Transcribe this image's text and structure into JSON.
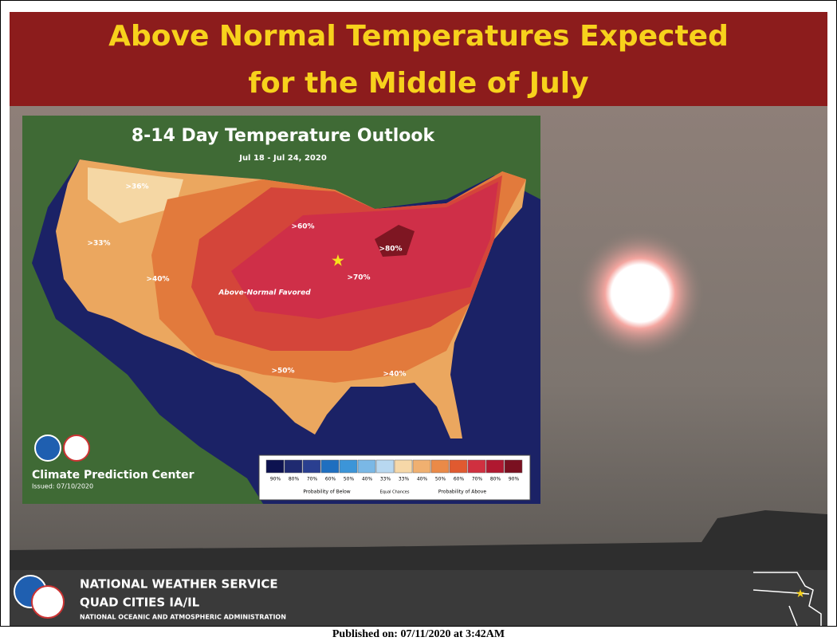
{
  "header": {
    "title_lines": [
      "Above Normal Temperatures Expected",
      "for the Middle of July"
    ]
  },
  "map": {
    "title": "8-14 Day Temperature Outlook",
    "dates": "Jul 18 - Jul 24, 2020",
    "labels": [
      ">36%",
      ">33%",
      ">40%",
      ">60%",
      ">80%",
      ">70%",
      "Above-Normal Favored",
      ">50%",
      ">40%"
    ],
    "source": "Climate Prediction Center",
    "issued": "Issued: 07/10/2020",
    "legend": {
      "items": [
        {
          "label": "90%",
          "color": "#0d1250"
        },
        {
          "label": "80%",
          "color": "#1f2a70"
        },
        {
          "label": "70%",
          "color": "#2a3f90"
        },
        {
          "label": "60%",
          "color": "#1f6fc0"
        },
        {
          "label": "50%",
          "color": "#3c95d8"
        },
        {
          "label": "40%",
          "color": "#7ab8e6"
        },
        {
          "label": "33%",
          "color": "#b8d8f0"
        },
        {
          "label": "33%",
          "color": "#f6d8a8"
        },
        {
          "label": "40%",
          "color": "#f0b070"
        },
        {
          "label": "50%",
          "color": "#ea8a48"
        },
        {
          "label": "60%",
          "color": "#e05a30"
        },
        {
          "label": "70%",
          "color": "#d03040"
        },
        {
          "label": "80%",
          "color": "#b01830"
        },
        {
          "label": "90%",
          "color": "#7a1020"
        }
      ],
      "below": "Probability of Below",
      "equal": "Equal Chances",
      "above": "Probability of Above"
    }
  },
  "footer": {
    "agency": "NATIONAL WEATHER SERVICE",
    "office": "QUAD CITIES IA/IL",
    "parent": "NATIONAL OCEANIC AND ATMOSPHERIC ADMINISTRATION"
  },
  "published": "Published on: 07/11/2020 at 3:42AM"
}
